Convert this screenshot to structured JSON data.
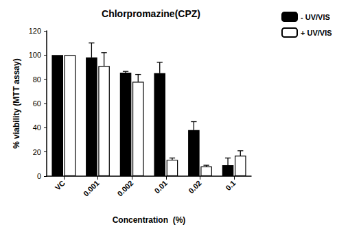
{
  "chart_data": {
    "type": "bar",
    "title": "Chlorpromazine(CPZ)",
    "x_label": "Concentration  (%)",
    "y_label": "% viability (MTT assay)",
    "categories": [
      "VC",
      "0.001",
      "0.002",
      "0.01",
      "0.02",
      "0.1"
    ],
    "series": [
      {
        "name": "- UV/VIS",
        "color": "#000000",
        "values": [
          100,
          98,
          85.5,
          85,
          38,
          9
        ],
        "errors": [
          0,
          12,
          1,
          9,
          7,
          6
        ]
      },
      {
        "name": "+ UV/VIS",
        "color": "#ffffff",
        "values": [
          100,
          91,
          78,
          13.5,
          8,
          17
        ],
        "errors": [
          0,
          11,
          6,
          1.5,
          1,
          4
        ]
      }
    ],
    "ylim": [
      0,
      120
    ],
    "yticks": [
      0,
      20,
      40,
      60,
      80,
      100,
      120
    ],
    "grid": false,
    "legend": "upper right"
  }
}
